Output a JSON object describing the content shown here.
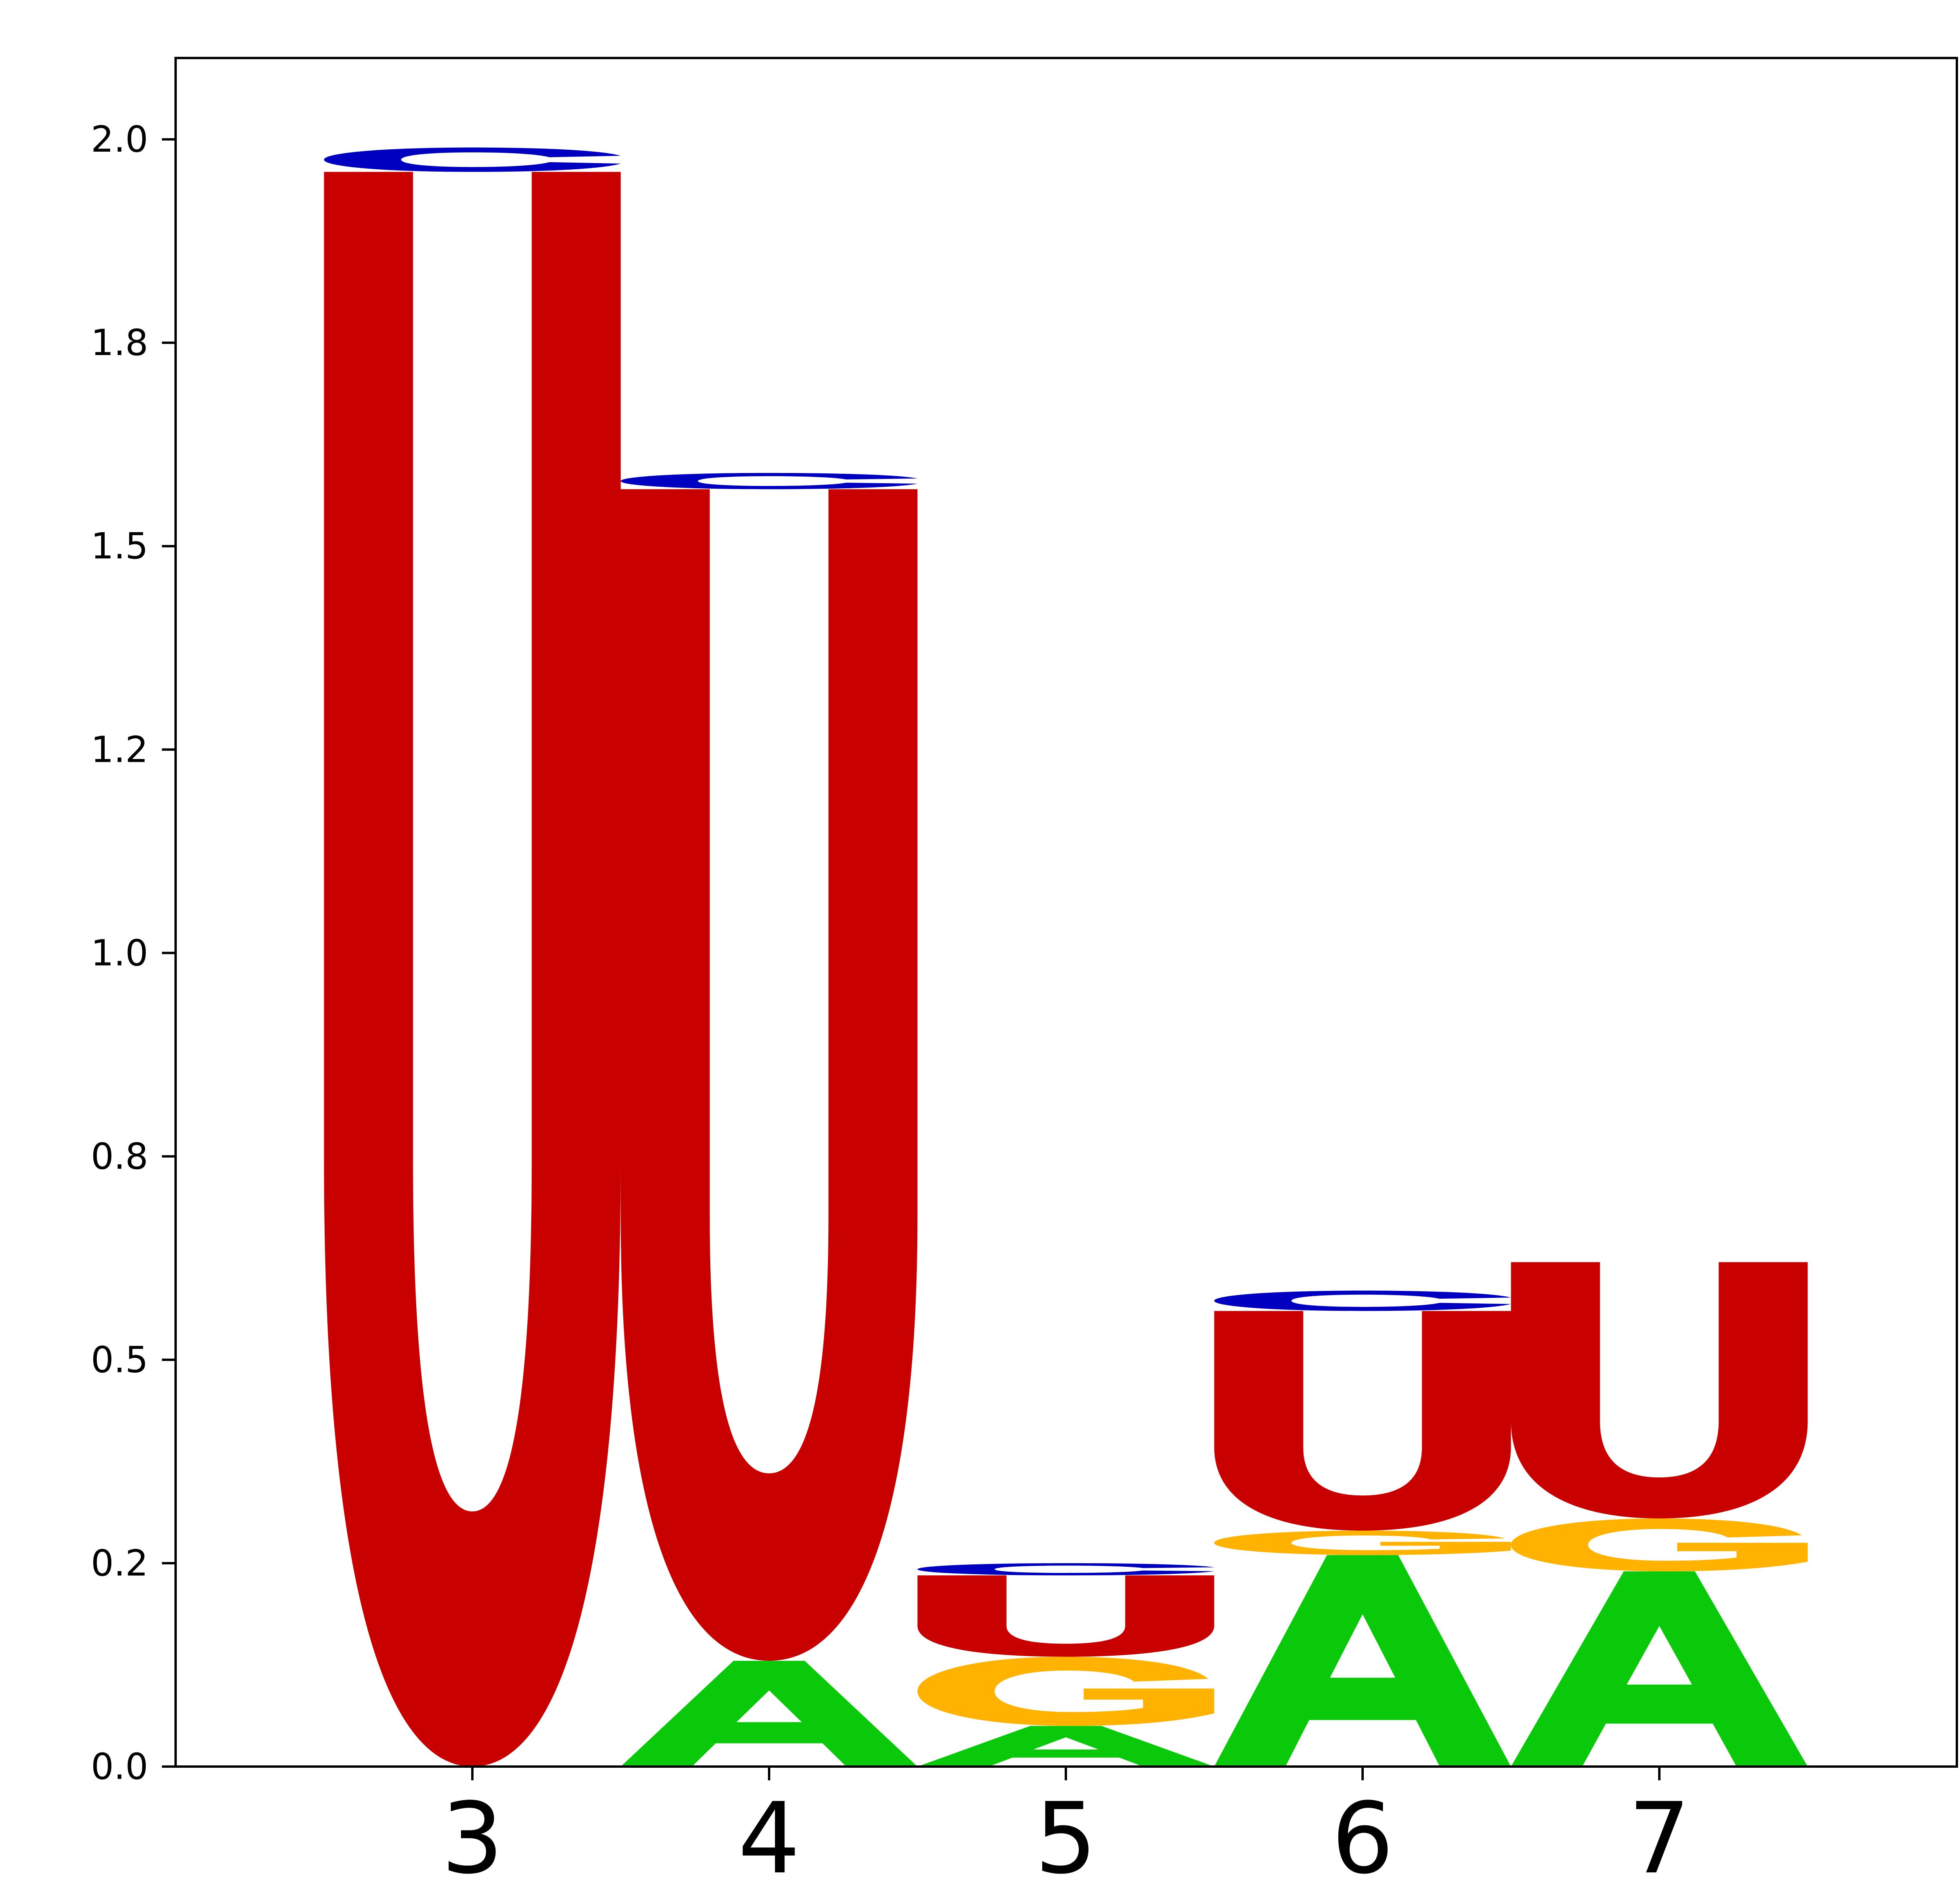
{
  "chart_data": {
    "type": "sequence-logo",
    "title": "",
    "xlabel": "",
    "ylabel": "",
    "ylim": [
      0,
      2.1
    ],
    "y_ticks": [
      "0.0",
      "0.2",
      "0.5",
      "0.8",
      "1.0",
      "1.2",
      "1.5",
      "1.8",
      "2.0"
    ],
    "y_tick_values": [
      0.0,
      0.25,
      0.5,
      0.75,
      1.0,
      1.25,
      1.5,
      1.75,
      2.0
    ],
    "positions": [
      "3",
      "4",
      "5",
      "6",
      "7"
    ],
    "stacks": [
      {
        "position": "3",
        "letters": [
          {
            "letter": "U",
            "from": 0.0,
            "to": 1.96
          },
          {
            "letter": "C",
            "from": 1.96,
            "to": 1.99
          }
        ]
      },
      {
        "position": "4",
        "letters": [
          {
            "letter": "A",
            "from": 0.0,
            "to": 0.13
          },
          {
            "letter": "U",
            "from": 0.13,
            "to": 1.57
          },
          {
            "letter": "C",
            "from": 1.57,
            "to": 1.59
          }
        ]
      },
      {
        "position": "5",
        "letters": [
          {
            "letter": "A",
            "from": 0.0,
            "to": 0.05
          },
          {
            "letter": "G",
            "from": 0.05,
            "to": 0.135
          },
          {
            "letter": "U",
            "from": 0.135,
            "to": 0.235
          },
          {
            "letter": "C",
            "from": 0.235,
            "to": 0.25
          }
        ]
      },
      {
        "position": "6",
        "letters": [
          {
            "letter": "A",
            "from": 0.0,
            "to": 0.26
          },
          {
            "letter": "G",
            "from": 0.26,
            "to": 0.29
          },
          {
            "letter": "U",
            "from": 0.29,
            "to": 0.56
          },
          {
            "letter": "C",
            "from": 0.56,
            "to": 0.585
          }
        ]
      },
      {
        "position": "7",
        "letters": [
          {
            "letter": "A",
            "from": 0.0,
            "to": 0.24
          },
          {
            "letter": "G",
            "from": 0.24,
            "to": 0.305
          },
          {
            "letter": "U",
            "from": 0.305,
            "to": 0.62
          }
        ]
      }
    ],
    "colors": {
      "A": "#0ac80a",
      "C": "#0000c0",
      "G": "#ffb300",
      "U": "#c80000"
    },
    "grid": false,
    "legend": "none"
  }
}
